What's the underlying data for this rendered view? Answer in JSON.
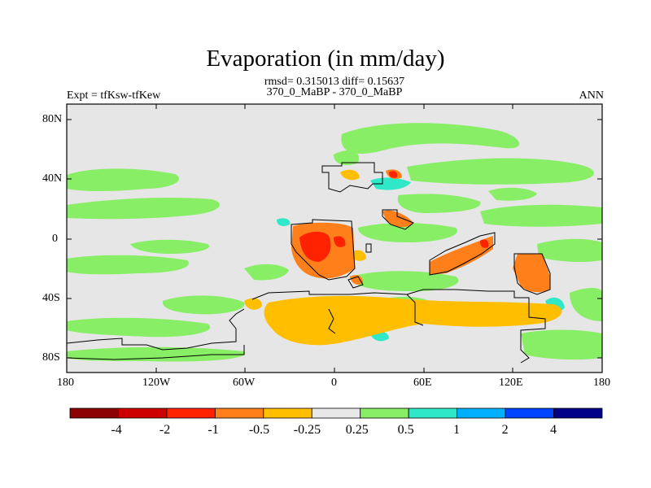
{
  "title": "Evaporation (in mm/day)",
  "stats_line": "rmsd= 0.315013 diff= 0.15637",
  "case_line": "370_0_MaBP - 370_0_MaBP",
  "expt_label": "Expt = tfKsw-tfKew",
  "season": "ANN",
  "map": {
    "x_ticks": [
      "180",
      "120W",
      "60W",
      "0",
      "60E",
      "120E",
      "180"
    ],
    "y_ticks": [
      "80N",
      "40N",
      "0",
      "40S",
      "80S"
    ],
    "x_range_deg": [
      -180,
      180
    ],
    "y_range_deg": [
      -90,
      90
    ]
  },
  "colorbar": {
    "labels": [
      "-4",
      "-2",
      "-1",
      "-0.5",
      "-0.25",
      "0.25",
      "0.5",
      "1",
      "2",
      "4"
    ],
    "colors": [
      "#8b0000",
      "#cc0000",
      "#ff2200",
      "#ff7f1a",
      "#ffbf00",
      "#e8e8e8",
      "#88ee66",
      "#2ee8c8",
      "#00b0ff",
      "#0044ff",
      "#000088"
    ]
  },
  "field_colors": {
    "background": "#e6e6e6",
    "positive_light": "#88ee66",
    "positive_med": "#2ee8c8",
    "negative_light": "#ffbf00",
    "negative_med": "#ff7f1a",
    "negative_strong": "#ff2200"
  }
}
